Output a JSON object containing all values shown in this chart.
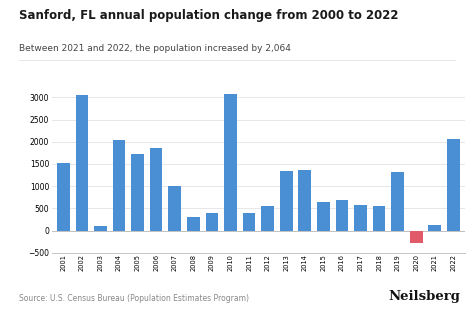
{
  "title": "Sanford, FL annual population change from 2000 to 2022",
  "subtitle": "Between 2021 and 2022, the population increased by 2,064",
  "source": "Source: U.S. Census Bureau (Population Estimates Program)",
  "brand": "Neilsberg",
  "years": [
    2001,
    2002,
    2003,
    2004,
    2005,
    2006,
    2007,
    2008,
    2009,
    2010,
    2011,
    2012,
    2013,
    2014,
    2015,
    2016,
    2017,
    2018,
    2019,
    2020,
    2021,
    2022
  ],
  "values": [
    1520,
    3060,
    100,
    2040,
    1720,
    1860,
    1000,
    300,
    390,
    3080,
    400,
    560,
    1340,
    1360,
    650,
    690,
    570,
    550,
    1310,
    -290,
    130,
    2064
  ],
  "bar_color_positive": "#4a8fd4",
  "bar_color_negative": "#e05a6a",
  "background_color": "#ffffff",
  "ylim": [
    -500,
    3200
  ],
  "yticks": [
    -500,
    0,
    500,
    1000,
    1500,
    2000,
    2500,
    3000
  ],
  "title_fontsize": 8.5,
  "subtitle_fontsize": 6.5,
  "source_fontsize": 5.5,
  "brand_fontsize": 9.5
}
